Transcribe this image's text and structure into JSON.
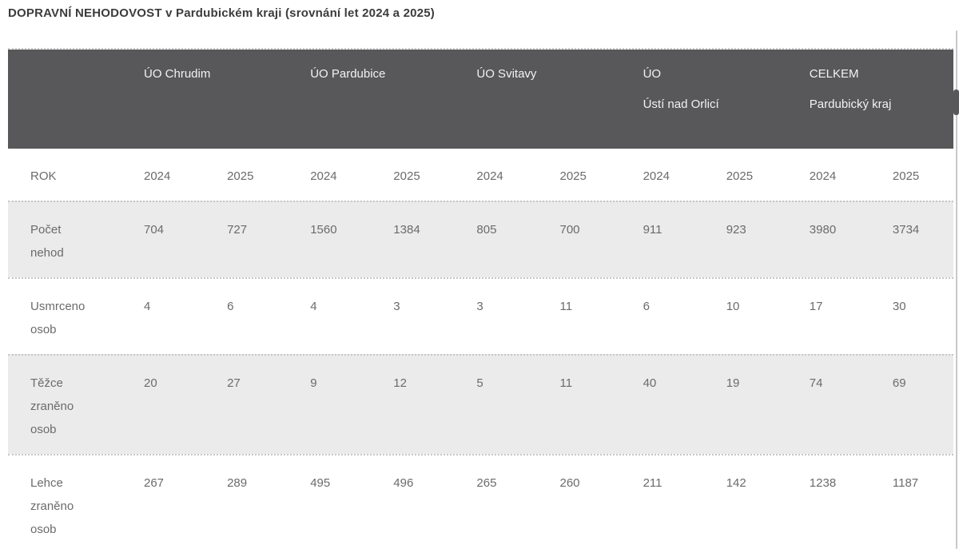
{
  "page": {
    "title": "DOPRAVNÍ NEHODOVOST v Pardubickém kraji (srovnání let 2024 a 2025)"
  },
  "colors": {
    "header_bg": "#58585a",
    "header_text": "#f2f2f2",
    "row_bg": "#ffffff",
    "row_alt_bg": "#ebebeb",
    "body_text": "#6b6b6b",
    "title_text": "#3c3c3c",
    "dotted_border": "#c6c6c6",
    "scrollbar_track": "#c9c9c9",
    "scrollbar_thumb": "#58585a"
  },
  "table": {
    "groups": [
      {
        "label": "ÚO Chrudim"
      },
      {
        "label": "ÚO Pardubice"
      },
      {
        "label": "ÚO Svitavy"
      },
      {
        "label": "ÚO\nÚstí nad Orlicí"
      },
      {
        "label": "CELKEM\nPardubický kraj"
      }
    ],
    "year_row": {
      "label": "ROK",
      "values": [
        "2024",
        "2025",
        "2024",
        "2025",
        "2024",
        "2025",
        "2024",
        "2025",
        "2024",
        "2025"
      ]
    },
    "rows": [
      {
        "label": "Počet\nnehod",
        "values": [
          704,
          727,
          1560,
          1384,
          805,
          700,
          911,
          923,
          3980,
          3734
        ]
      },
      {
        "label": "Usmrceno\nosob",
        "values": [
          4,
          6,
          4,
          3,
          3,
          11,
          6,
          10,
          17,
          30
        ]
      },
      {
        "label": "Těžce\nzraněno\nosob",
        "values": [
          20,
          27,
          9,
          12,
          5,
          11,
          40,
          19,
          74,
          69
        ]
      },
      {
        "label": "Lehce\nzraněno\nosob",
        "values": [
          267,
          289,
          495,
          496,
          265,
          260,
          211,
          142,
          1238,
          1187
        ]
      }
    ]
  },
  "chart_data": {
    "type": "table",
    "title": "DOPRAVNÍ NEHODOVOST v Pardubickém kraji (srovnání let 2024 a 2025)",
    "column_groups": [
      "ÚO Chrudim",
      "ÚO Pardubice",
      "ÚO Svitavy",
      "ÚO Ústí nad Orlicí",
      "CELKEM Pardubický kraj"
    ],
    "years_per_group": [
      2024,
      2025
    ],
    "rows": [
      {
        "metric": "Počet nehod",
        "values": [
          704,
          727,
          1560,
          1384,
          805,
          700,
          911,
          923,
          3980,
          3734
        ]
      },
      {
        "metric": "Usmrceno osob",
        "values": [
          4,
          6,
          4,
          3,
          3,
          11,
          6,
          10,
          17,
          30
        ]
      },
      {
        "metric": "Těžce zraněno osob",
        "values": [
          20,
          27,
          9,
          12,
          5,
          11,
          40,
          19,
          74,
          69
        ]
      },
      {
        "metric": "Lehce zraněno osob",
        "values": [
          267,
          289,
          495,
          496,
          265,
          260,
          211,
          142,
          1238,
          1187
        ]
      }
    ]
  }
}
